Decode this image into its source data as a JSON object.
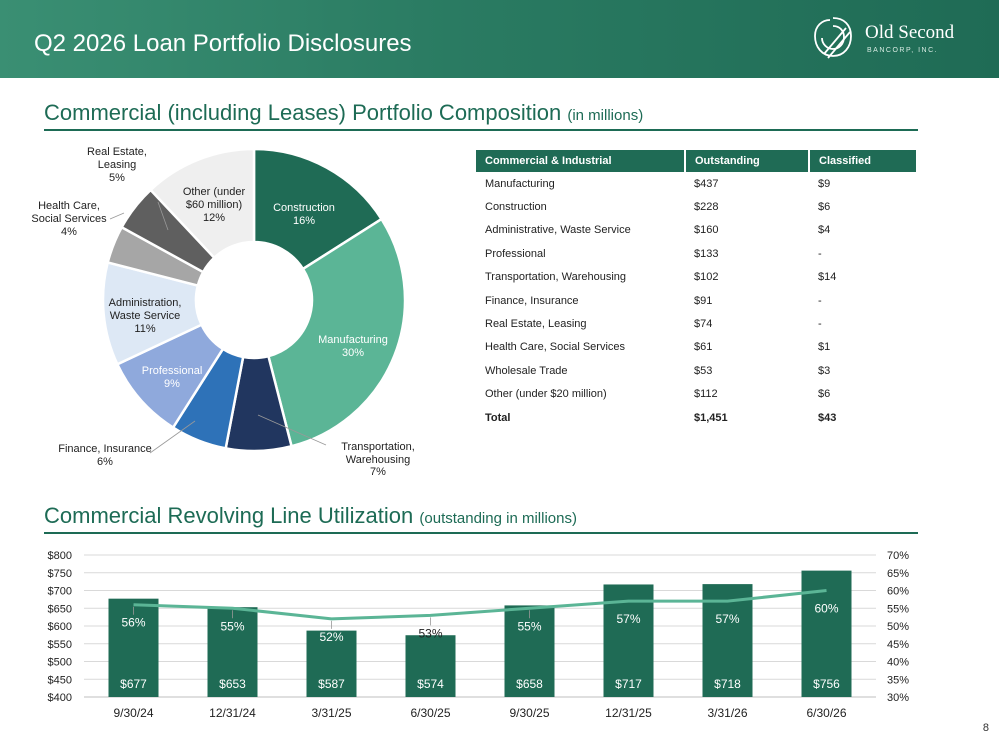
{
  "header": {
    "title": "Q2 2026 Loan Portfolio Disclosures",
    "logo_name": "Old Second",
    "logo_sub": "BANCORP, INC.",
    "brand_color": "#1f6b55"
  },
  "section1": {
    "title": "Commercial (including Leases) Portfolio Composition",
    "subtitle": "(in millions)"
  },
  "section2": {
    "title": "Commercial Revolving Line Utilization",
    "subtitle": "(outstanding in millions)"
  },
  "page_number": "8",
  "table": {
    "headers": [
      "Commercial & Industrial",
      "Outstanding",
      "Classified"
    ],
    "rows": [
      [
        "Manufacturing",
        "$437",
        "$9"
      ],
      [
        "Construction",
        "$228",
        "$6"
      ],
      [
        "Administrative, Waste Service",
        "$160",
        "$4"
      ],
      [
        "Professional",
        "$133",
        "-"
      ],
      [
        "Transportation, Warehousing",
        "$102",
        "$14"
      ],
      [
        "Finance, Insurance",
        "$91",
        "-"
      ],
      [
        "Real Estate, Leasing",
        "$74",
        "-"
      ],
      [
        "Health Care, Social Services",
        "$61",
        "$1"
      ],
      [
        "Wholesale Trade",
        "$53",
        "$3"
      ],
      [
        "Other (under $20 million)",
        "$112",
        "$6"
      ]
    ],
    "total": [
      "Total",
      "$1,451",
      "$43"
    ]
  },
  "chart_data": [
    {
      "type": "pie",
      "donut": true,
      "slices": [
        {
          "label": "Construction",
          "value": 16,
          "display": "16%",
          "color": "#1f6b55"
        },
        {
          "label": "Manufacturing",
          "value": 30,
          "display": "30%",
          "color": "#5bb596"
        },
        {
          "label": "Transportation, Warehousing",
          "value": 7,
          "display": "7%",
          "color": "#21365f"
        },
        {
          "label": "Finance, Insurance",
          "value": 6,
          "display": "6%",
          "color": "#2e72b8"
        },
        {
          "label": "Professional",
          "value": 9,
          "display": "9%",
          "color": "#8fa9dc"
        },
        {
          "label": "Administration, Waste Service",
          "value": 11,
          "display": "11%",
          "color": "#dde8f5"
        },
        {
          "label": "Health Care, Social Services",
          "value": 4,
          "display": "4%",
          "color": "#a6a6a6"
        },
        {
          "label": "Real Estate, Leasing",
          "value": 5,
          "display": "5%",
          "color": "#5f5f5f"
        },
        {
          "label": "Other (under $60 million)",
          "value": 12,
          "display": "12%",
          "color": "#efefef"
        }
      ]
    },
    {
      "type": "bar",
      "categories": [
        "9/30/24",
        "12/31/24",
        "3/31/25",
        "6/30/25",
        "9/30/25",
        "12/31/25",
        "3/31/26",
        "6/30/26"
      ],
      "series": [
        {
          "type": "bar",
          "values": [
            677,
            653,
            587,
            574,
            658,
            717,
            718,
            756
          ],
          "labels": [
            "$677",
            "$653",
            "$587",
            "$574",
            "$658",
            "$717",
            "$718",
            "$756"
          ],
          "color": "#1f6b55"
        },
        {
          "type": "line",
          "axis": "right",
          "values": [
            56,
            55,
            52,
            53,
            55,
            57,
            57,
            60
          ],
          "labels": [
            "56%",
            "55%",
            "52%",
            "53%",
            "55%",
            "57%",
            "57%",
            "60%"
          ],
          "color": "#5bb596"
        }
      ],
      "ylim": [
        400,
        800
      ],
      "y_ticks": [
        "$400",
        "$450",
        "$500",
        "$550",
        "$600",
        "$650",
        "$700",
        "$750",
        "$800"
      ],
      "y2lim": [
        30,
        70
      ],
      "y2_ticks": [
        "30%",
        "35%",
        "40%",
        "45%",
        "50%",
        "55%",
        "60%",
        "65%",
        "70%"
      ],
      "grid": true
    }
  ]
}
